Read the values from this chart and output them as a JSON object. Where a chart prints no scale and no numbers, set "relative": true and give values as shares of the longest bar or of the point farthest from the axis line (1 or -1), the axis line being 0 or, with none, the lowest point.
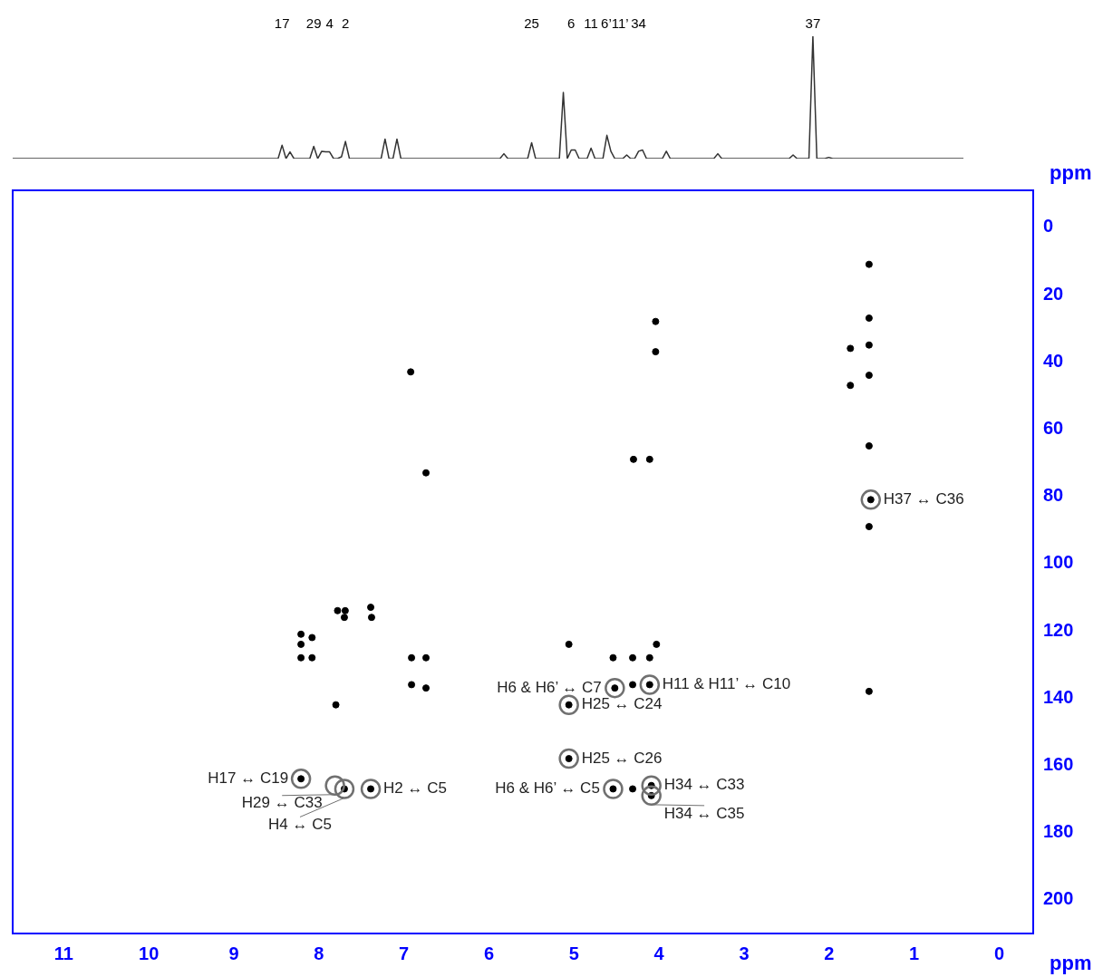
{
  "chart_data": [
    {
      "type": "line",
      "relative": true,
      "color": "#333333",
      "marker": "none",
      "categories": [
        null,
        null,
        null,
        null,
        null,
        null,
        null,
        null,
        null,
        null,
        null,
        null,
        null,
        null,
        null,
        null,
        null,
        null,
        null,
        null,
        null,
        null,
        null,
        null,
        null,
        null,
        null,
        null,
        null,
        null,
        null,
        null,
        null,
        null,
        null,
        null,
        null,
        null,
        null,
        null,
        null,
        null,
        null,
        null,
        null,
        null,
        null,
        null,
        null,
        null,
        null,
        null,
        null,
        null,
        null,
        null,
        null,
        null,
        null,
        null,
        null,
        null,
        null,
        null,
        null,
        null,
        null,
        null,
        "17",
        null,
        null,
        null,
        null,
        null,
        null,
        null,
        "29",
        null,
        null,
        null,
        "4",
        null,
        null,
        null,
        "2",
        null,
        null,
        null,
        null,
        null,
        null,
        null,
        null,
        null,
        null,
        null,
        null,
        null,
        null,
        null,
        null,
        null,
        null,
        null,
        null,
        null,
        null,
        null,
        null,
        null,
        null,
        null,
        null,
        null,
        null,
        null,
        null,
        null,
        null,
        null,
        null,
        null,
        null,
        null,
        null,
        null,
        null,
        null,
        null,
        null,
        null,
        "25",
        null,
        null,
        null,
        null,
        null,
        null,
        null,
        null,
        null,
        "6",
        null,
        null,
        null,
        null,
        "11",
        null,
        null,
        null,
        null,
        null,
        "6’11’",
        null,
        null,
        null,
        null,
        null,
        "34",
        null,
        null,
        null,
        null,
        null,
        null,
        null,
        null,
        null,
        null,
        null,
        null,
        null,
        null,
        null,
        null,
        null,
        null,
        null,
        null,
        null,
        null,
        null,
        null,
        null,
        null,
        null,
        null,
        null,
        null,
        null,
        null,
        null,
        null,
        null,
        null,
        null,
        null,
        null,
        null,
        null,
        null,
        null,
        "37",
        null,
        null,
        null,
        null,
        null,
        null,
        null,
        null,
        null,
        null,
        null,
        null,
        null,
        null,
        null,
        null,
        null,
        null,
        null,
        null,
        null,
        null,
        null,
        null,
        null,
        null,
        null,
        null,
        null,
        null,
        null,
        null,
        null,
        null,
        null,
        null,
        null,
        null
      ],
      "values": [
        0,
        0,
        0,
        0,
        0,
        0,
        0,
        0,
        0,
        0,
        0,
        0,
        0,
        0,
        0,
        0,
        0,
        0,
        0,
        0,
        0,
        0,
        0,
        0,
        0,
        0,
        0,
        0,
        0,
        0,
        0,
        0,
        0,
        0,
        0,
        0,
        0,
        0,
        0,
        0,
        0,
        0,
        0,
        0,
        0,
        0,
        0,
        0,
        0,
        0,
        0,
        0,
        0,
        0,
        0,
        0,
        0,
        0,
        0,
        0,
        0,
        0,
        0,
        0,
        0,
        0,
        0,
        0,
        0.11,
        0,
        0.055,
        0,
        0,
        0,
        0,
        0,
        0.1,
        0,
        0.06,
        0.055,
        0.055,
        0,
        0,
        0.015,
        0.14,
        0,
        0,
        0,
        0,
        0,
        0,
        0,
        0,
        0,
        0.16,
        0,
        0,
        0.16,
        0,
        0,
        0,
        0,
        0,
        0,
        0,
        0,
        0,
        0,
        0,
        0,
        0,
        0,
        0,
        0,
        0,
        0,
        0,
        0,
        0,
        0,
        0,
        0,
        0,
        0,
        0.04,
        0,
        0,
        0,
        0,
        0,
        0,
        0.13,
        0,
        0,
        0,
        0,
        0,
        0,
        0,
        0.54,
        0,
        0.07,
        0.07,
        0,
        0,
        0,
        0.085,
        0,
        0,
        0,
        0.19,
        0.06,
        0,
        0,
        0,
        0.03,
        0,
        0,
        0.06,
        0.07,
        0,
        0,
        0,
        0,
        0,
        0.06,
        0,
        0,
        0,
        0,
        0,
        0,
        0,
        0,
        0,
        0,
        0,
        0,
        0.04,
        0,
        0,
        0,
        0,
        0,
        0,
        0,
        0,
        0,
        0,
        0,
        0,
        0,
        0,
        0,
        0,
        0,
        0,
        0.03,
        0,
        0,
        0,
        0,
        1,
        0,
        0,
        0,
        0.01,
        0,
        0,
        0,
        0,
        0,
        0,
        0,
        0,
        0,
        0,
        0,
        0,
        0,
        0,
        0,
        0,
        0,
        0,
        0,
        0,
        0,
        0,
        0,
        0,
        0,
        0,
        0,
        0,
        0,
        0,
        0,
        0,
        0,
        0
      ]
    },
    {
      "type": "scatter",
      "color": "#000000",
      "marker": "circle",
      "xlabel": "ppm",
      "ylabel": "ppm",
      "xlim": [
        11.6,
        -0.4
      ],
      "ylim": [
        210,
        -11
      ],
      "xticks": [
        11,
        10,
        9,
        8,
        7,
        6,
        5,
        4,
        3,
        2,
        1,
        0
      ],
      "yticks": [
        0,
        20,
        40,
        60,
        80,
        100,
        120,
        140,
        160,
        180,
        200
      ],
      "x": [
        1.53,
        1.53,
        1.53,
        1.53,
        1.75,
        1.75,
        4.04,
        4.04,
        6.92,
        6.74,
        4.3,
        4.11,
        1.53,
        1.51,
        1.53,
        1.53,
        8.21,
        8.21,
        8.21,
        8.08,
        8.08,
        7.78,
        7.69,
        7.7,
        7.39,
        7.38,
        6.91,
        6.74,
        6.91,
        6.74,
        7.8,
        5.06,
        4.54,
        4.31,
        4.11,
        4.03,
        4.52,
        4.31,
        4.11,
        5.06,
        5.06,
        8.21,
        7.7,
        7.39,
        4.54,
        4.31,
        4.09,
        4.09
      ],
      "values": [
        11,
        27,
        35,
        44,
        36,
        47,
        28,
        37,
        43,
        73,
        69,
        69,
        65,
        81,
        89,
        138,
        121,
        124,
        128,
        128,
        122,
        114,
        114,
        116,
        113,
        116,
        128,
        128,
        136,
        137,
        142,
        124,
        128,
        128,
        128,
        124,
        137,
        136,
        136,
        142,
        158,
        164,
        167,
        167,
        167,
        167,
        166,
        169
      ],
      "annotations": [
        {
          "text": "H37 ↔ C36",
          "x": 1.51,
          "y": 81
        },
        {
          "text": "H6 & H6’ ↔ C7",
          "x": 4.52,
          "y": 137
        },
        {
          "text": "H11 & H11’ ↔ C10",
          "x": 4.11,
          "y": 136
        },
        {
          "text": "H25 ↔ C24",
          "x": 5.06,
          "y": 142
        },
        {
          "text": "H25 ↔ C26",
          "x": 5.06,
          "y": 158
        },
        {
          "text": "H17 ↔ C19",
          "x": 8.21,
          "y": 164
        },
        {
          "text": "H29 ↔ C33",
          "x": 7.81,
          "y": 166
        },
        {
          "text": "H2 ↔ C5",
          "x": 7.39,
          "y": 167
        },
        {
          "text": "H4 ↔ C5",
          "x": 7.7,
          "y": 167
        },
        {
          "text": "H6 & H6’ ↔ C5",
          "x": 4.54,
          "y": 167
        },
        {
          "text": "H34 ↔ C33",
          "x": 4.09,
          "y": 166
        },
        {
          "text": "H34 ↔ C35",
          "x": 4.09,
          "y": 169
        }
      ]
    }
  ]
}
